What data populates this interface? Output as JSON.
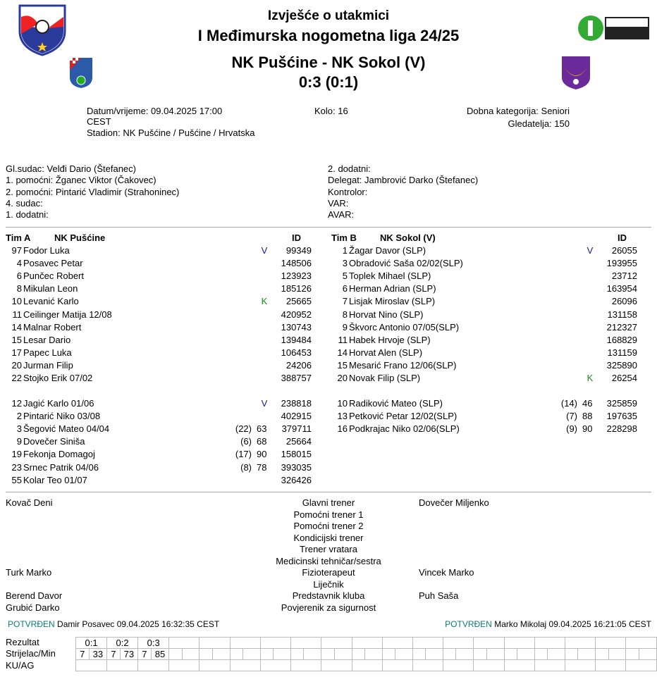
{
  "header": {
    "report_title": "Izvješće o utakmici",
    "league": "I Međimurska nogometna liga 24/25",
    "match": "NK Pušćine - NK Sokol (V)",
    "score": "0:3 (0:1)"
  },
  "logos": {
    "federation": "Međimurski nogometni savez 1959",
    "league": "Međimurska nogometna liga 2024./2025.",
    "home": "NK Pušćine",
    "away": "NK Sokol"
  },
  "info": {
    "datetime": "Datum/vrijeme: 09.04.2025 17:00",
    "timezone": "CEST",
    "stadium": "Stadion: NK Pušćine / Pušćine / Hrvatska",
    "round": "Kolo: 16",
    "category": "Dobna kategorija: Seniori",
    "attendance": "Gledatelja: 150"
  },
  "officials_left": [
    "Gl.sudac: Velđi Dario (Štefanec)",
    "1. pomoćni: Žganec Viktor (Čakovec)",
    "2. pomoćni: Pintarić Vladimir (Strahoninec)",
    "4. sudac:",
    "1. dodatni:"
  ],
  "officials_right": [
    "2. dodatni:",
    "Delegat: Jambrović Darko (Štefanec)",
    "Kontrolor:",
    "VAR:",
    "AVAR:"
  ],
  "team_a": {
    "label": "Tim A",
    "name": "NK Pušćine",
    "id_header": "ID",
    "starters": [
      {
        "no": "97",
        "name": "Fodor Luka",
        "mark": "V",
        "id": "99349"
      },
      {
        "no": "4",
        "name": "Posavec Petar",
        "id": "148506"
      },
      {
        "no": "6",
        "name": "Punčec Robert",
        "id": "123923"
      },
      {
        "no": "8",
        "name": "Mikulan Leon",
        "id": "185126"
      },
      {
        "no": "10",
        "name": "Levanić Karlo",
        "mark": "K",
        "id": "25665"
      },
      {
        "no": "11",
        "name": "Ceilinger Matija 12/08",
        "id": "420952"
      },
      {
        "no": "14",
        "name": "Malnar Robert",
        "id": "130743"
      },
      {
        "no": "15",
        "name": "Lesar Dario",
        "id": "139484"
      },
      {
        "no": "17",
        "name": "Papec Luka",
        "id": "106453"
      },
      {
        "no": "20",
        "name": "Jurman Filip",
        "id": "24206"
      },
      {
        "no": "22",
        "name": "Stojko Erik 07/02",
        "id": "388757"
      }
    ],
    "subs": [
      {
        "no": "12",
        "name": "Jagić Karlo 01/06",
        "mark": "V",
        "id": "238818"
      },
      {
        "no": "2",
        "name": "Pintarić Niko 03/08",
        "id": "402915"
      },
      {
        "no": "3",
        "name": "Šegović Mateo 04/04",
        "out": "(22)",
        "min": "63",
        "id": "379711"
      },
      {
        "no": "9",
        "name": "Dovečer Siniša",
        "out": "(6)",
        "min": "68",
        "id": "25664"
      },
      {
        "no": "19",
        "name": "Fekonja Domagoj",
        "out": "(17)",
        "min": "90",
        "id": "158015"
      },
      {
        "no": "23",
        "name": "Srnec Patrik 04/06",
        "out": "(8)",
        "min": "78",
        "id": "393035"
      },
      {
        "no": "55",
        "name": "Kolar Teo 01/07",
        "id": "326426"
      }
    ]
  },
  "team_b": {
    "label": "Tim B",
    "name": "NK Sokol (V)",
    "id_header": "ID",
    "starters": [
      {
        "no": "1",
        "name": "Žagar Davor (SLP)",
        "mark": "V",
        "id": "26055"
      },
      {
        "no": "3",
        "name": "Obradović Saša 02/02(SLP)",
        "id": "193955"
      },
      {
        "no": "5",
        "name": "Toplek Mihael (SLP)",
        "id": "23712"
      },
      {
        "no": "6",
        "name": "Herman Adrian (SLP)",
        "id": "163954"
      },
      {
        "no": "7",
        "name": "Lisjak Miroslav (SLP)",
        "id": "26096"
      },
      {
        "no": "8",
        "name": "Horvat Nino (SLP)",
        "id": "131158"
      },
      {
        "no": "9",
        "name": "Škvorc Antonio 07/05(SLP)",
        "id": "212327"
      },
      {
        "no": "11",
        "name": "Habek Hrvoje (SLP)",
        "id": "168829"
      },
      {
        "no": "14",
        "name": "Horvat Alen (SLP)",
        "id": "131159"
      },
      {
        "no": "15",
        "name": "Mesarić Frano 12/06(SLP)",
        "id": "325890"
      },
      {
        "no": "20",
        "name": "Novak Filip (SLP)",
        "mark": "K",
        "id": "26254"
      }
    ],
    "subs": [
      {
        "no": "10",
        "name": "Radiković Mateo (SLP)",
        "out": "(14)",
        "min": "46",
        "id": "325859"
      },
      {
        "no": "13",
        "name": "Petković Petar 12/02(SLP)",
        "out": "(7)",
        "min": "88",
        "id": "197635"
      },
      {
        "no": "16",
        "name": "Podkrajac Niko 02/06(SLP)",
        "out": "(9)",
        "min": "90",
        "id": "228298"
      }
    ]
  },
  "staff": {
    "roles": [
      "Glavni trener",
      "Pomoćni trener 1",
      "Pomoćni trener 2",
      "Kondicijski trener",
      "Trener vratara",
      "Medicinski tehničar/sestra",
      "Fizioterapeut",
      "Liječnik",
      "Predstavnik kluba",
      "Povjerenik za sigurnost"
    ],
    "home": [
      "Kovač Deni",
      "",
      "",
      "",
      "",
      "",
      "Turk Marko",
      "",
      "Berend Davor",
      "Grubić Darko"
    ],
    "away": [
      "Dovečer Miljenko",
      "",
      "",
      "",
      "",
      "",
      "Vincek Marko",
      "",
      "Puh Saša",
      ""
    ]
  },
  "confirmations": {
    "home": {
      "status": "POTVRĐEN",
      "text": "Damir Posavec 09.04.2025 16:32:35 CEST"
    },
    "away": {
      "status": "POTVRĐEN",
      "text": "Marko Mikolaj 09.04.2025 16:21:05 CEST"
    }
  },
  "goals": {
    "labels": [
      "Rezultat",
      "Strijelac/Min",
      "KU/AG"
    ],
    "entries": [
      {
        "score": "0:1",
        "scorer": "7",
        "min": "33"
      },
      {
        "score": "0:2",
        "scorer": "7",
        "min": "73"
      },
      {
        "score": "0:3",
        "scorer": "7",
        "min": "85"
      }
    ]
  },
  "colors": {
    "captain_mark": "#1a1a9a",
    "keeper_mark": "#1a8a1a",
    "confirmed": "#0a7a7a"
  }
}
